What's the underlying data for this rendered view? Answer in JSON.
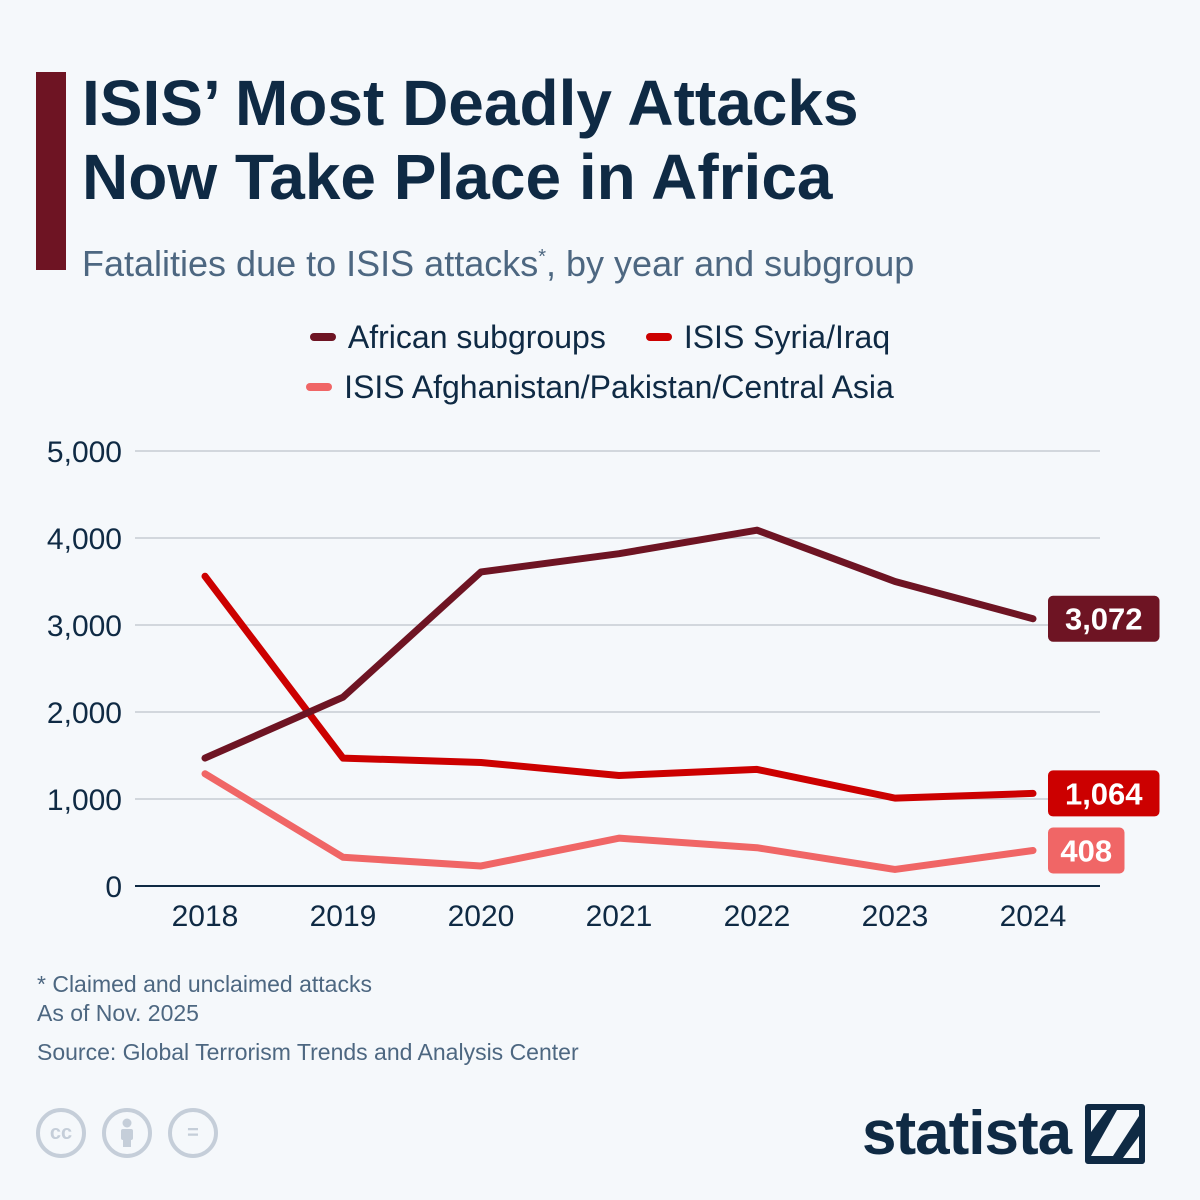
{
  "header": {
    "title_line1": "ISIS’ Most Deadly Attacks",
    "title_line2": "Now Take Place in Africa",
    "subtitle_main": "Fatalities due to ISIS attacks",
    "subtitle_star": "*",
    "subtitle_rest": ", by year and subgroup"
  },
  "colors": {
    "accent": "#6e1423",
    "african": "#6e1423",
    "syria": "#cc0000",
    "afpak": "#f06666",
    "grid": "#c7ccd3",
    "text": "#0f2a44"
  },
  "chart_data": {
    "type": "line",
    "title": "ISIS’ Most Deadly Attacks Now Take Place in Africa",
    "subtitle": "Fatalities due to ISIS attacks*, by year and subgroup",
    "x": [
      "2018",
      "2019",
      "2020",
      "2021",
      "2022",
      "2023",
      "2024"
    ],
    "ylim": [
      0,
      5000
    ],
    "yticks": [
      0,
      1000,
      2000,
      3000,
      4000,
      5000
    ],
    "ytick_labels": [
      "0",
      "1,000",
      "2,000",
      "3,000",
      "4,000",
      "5,000"
    ],
    "grid": true,
    "legend_position": "top-center",
    "series": [
      {
        "name": "African subgroups",
        "color": "#6e1423",
        "values": [
          1470,
          2170,
          3610,
          3820,
          4090,
          3500,
          3072
        ],
        "end_label": "3,072"
      },
      {
        "name": "ISIS Syria/Iraq",
        "color": "#cc0000",
        "values": [
          3560,
          1470,
          1420,
          1270,
          1340,
          1010,
          1064
        ],
        "end_label": "1,064"
      },
      {
        "name": "ISIS Afghanistan/Pakistan/Central Asia",
        "color": "#f06666",
        "values": [
          1290,
          330,
          230,
          550,
          440,
          190,
          408
        ],
        "end_label": "408"
      }
    ]
  },
  "legend": {
    "item1": "African subgroups",
    "item2": "ISIS Syria/Iraq",
    "item3": "ISIS Afghanistan/Pakistan/Central Asia"
  },
  "notes": {
    "footnote": "* Claimed and unclaimed attacks",
    "as_of": "As of Nov. 2025",
    "source": "Source: Global Terrorism Trends and Analysis Center"
  },
  "footer": {
    "cc_label": "cc",
    "equals_label": "=",
    "brand": "statista"
  }
}
